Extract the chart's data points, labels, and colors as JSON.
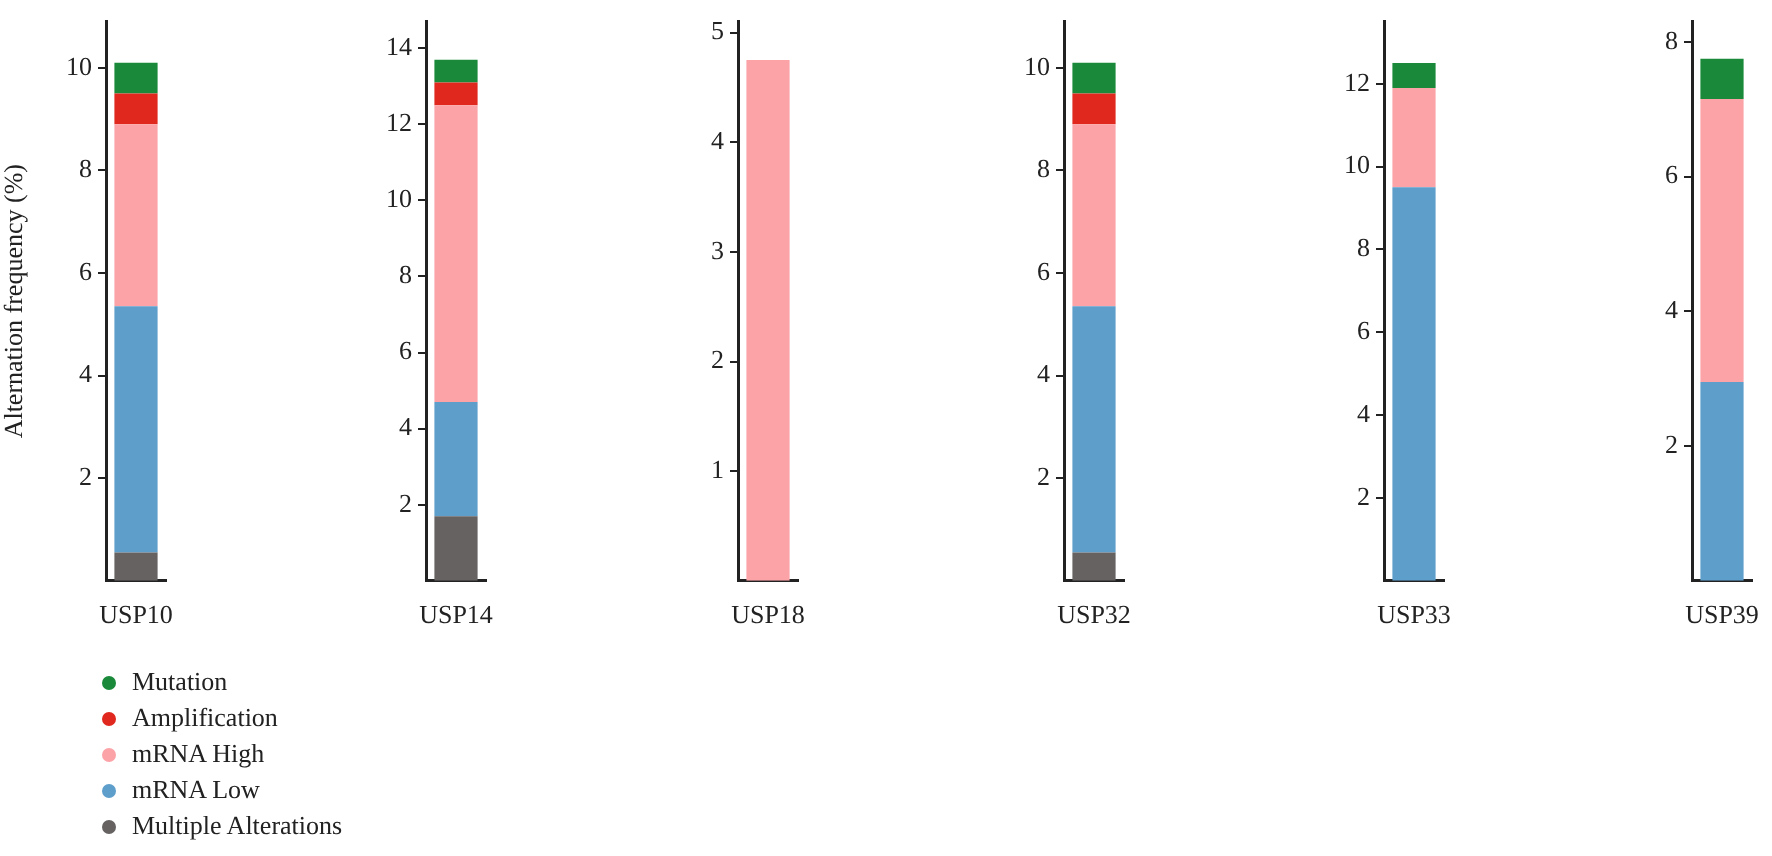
{
  "chart_data": [
    {
      "type": "bar",
      "stacked": true,
      "ylabel": "Alternation frequency (%)",
      "categories": [
        "USP10"
      ],
      "ylim": [
        0,
        10.9
      ],
      "yticks": [
        2,
        4,
        6,
        8,
        10
      ],
      "legend": "bottom",
      "marker": "circle",
      "series": [
        {
          "name": "Multiple Alterations",
          "color": "#666262",
          "values": [
            0.55
          ]
        },
        {
          "name": "mRNA Low",
          "color": "#5e9ecb",
          "values": [
            4.8
          ]
        },
        {
          "name": "mRNA High",
          "color": "#fca3a8",
          "values": [
            3.55
          ]
        },
        {
          "name": "Amplification",
          "color": "#e0281e",
          "values": [
            0.6
          ]
        },
        {
          "name": "Mutation",
          "color": "#1a8a3a",
          "values": [
            0.6
          ]
        }
      ]
    },
    {
      "type": "bar",
      "stacked": true,
      "categories": [
        "USP14"
      ],
      "ylim": [
        0,
        14.7
      ],
      "yticks": [
        2,
        4,
        6,
        8,
        10,
        12,
        14
      ],
      "series": [
        {
          "color": "#666262",
          "values": [
            1.7
          ]
        },
        {
          "color": "#5e9ecb",
          "values": [
            3.0
          ]
        },
        {
          "color": "#fca3a8",
          "values": [
            7.8
          ]
        },
        {
          "color": "#e0281e",
          "values": [
            0.6
          ]
        },
        {
          "color": "#1a8a3a",
          "values": [
            0.6
          ]
        }
      ]
    },
    {
      "type": "bar",
      "stacked": true,
      "categories": [
        "USP18"
      ],
      "ylim": [
        0,
        5.1
      ],
      "yticks": [
        1,
        2,
        3,
        4,
        5
      ],
      "series": [
        {
          "color": "#fca3a8",
          "values": [
            4.75
          ]
        }
      ]
    },
    {
      "type": "bar",
      "stacked": true,
      "categories": [
        "USP32"
      ],
      "ylim": [
        0,
        10.9
      ],
      "yticks": [
        2,
        4,
        6,
        8,
        10
      ],
      "series": [
        {
          "color": "#666262",
          "values": [
            0.55
          ]
        },
        {
          "color": "#5e9ecb",
          "values": [
            4.8
          ]
        },
        {
          "color": "#fca3a8",
          "values": [
            3.55
          ]
        },
        {
          "color": "#e0281e",
          "values": [
            0.6
          ]
        },
        {
          "color": "#1a8a3a",
          "values": [
            0.6
          ]
        }
      ]
    },
    {
      "type": "bar",
      "stacked": true,
      "categories": [
        "USP33"
      ],
      "ylim": [
        0,
        13.5
      ],
      "yticks": [
        2,
        4,
        6,
        8,
        10,
        12
      ],
      "series": [
        {
          "color": "#5e9ecb",
          "values": [
            9.5
          ]
        },
        {
          "color": "#fca3a8",
          "values": [
            2.4
          ]
        },
        {
          "color": "#1a8a3a",
          "values": [
            0.6
          ]
        }
      ]
    },
    {
      "type": "bar",
      "stacked": true,
      "categories": [
        "USP39"
      ],
      "ylim": [
        0,
        8.3
      ],
      "yticks": [
        2,
        4,
        6,
        8
      ],
      "series": [
        {
          "color": "#5e9ecb",
          "values": [
            2.95
          ]
        },
        {
          "color": "#fca3a8",
          "values": [
            4.2
          ]
        },
        {
          "color": "#1a8a3a",
          "values": [
            0.6
          ]
        }
      ]
    }
  ]
}
